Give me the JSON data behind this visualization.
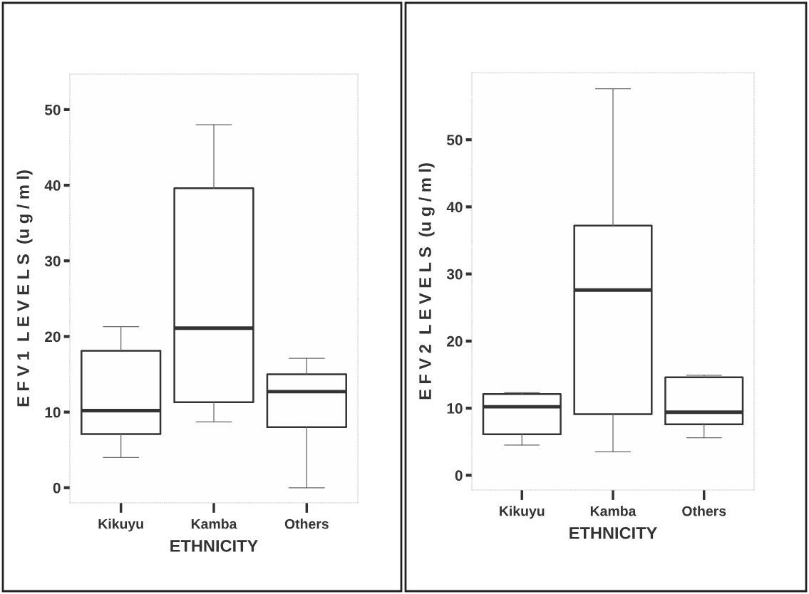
{
  "chart_data": [
    {
      "type": "box",
      "xlabel": "ETHNICITY",
      "ylabel": "E F V 1  L E V E L S  (u g / m l)",
      "categories": [
        "Kikuyu",
        "Kamba",
        "Others"
      ],
      "ylim": [
        -2.0,
        54.7
      ],
      "yticks": [
        0,
        10,
        20,
        30,
        40,
        50
      ],
      "grid": false,
      "boxes": [
        {
          "low": 4.0,
          "q1": 7.1,
          "median": 10.2,
          "q3": 18.1,
          "high": 21.3
        },
        {
          "low": 8.7,
          "q1": 11.3,
          "median": 21.1,
          "q3": 39.6,
          "high": 48.0
        },
        {
          "low": 0.0,
          "q1": 8.0,
          "median": 12.7,
          "q3": 15.0,
          "high": 17.1
        }
      ]
    },
    {
      "type": "box",
      "xlabel": "ETHNICITY",
      "ylabel": "E F V 2  L E V E L S  (u g / m l)",
      "categories": [
        "Kikuyu",
        "Kamba",
        "Others"
      ],
      "ylim": [
        -2.2,
        60.0
      ],
      "yticks": [
        0,
        10,
        20,
        30,
        40,
        50
      ],
      "grid": false,
      "boxes": [
        {
          "low": 4.5,
          "q1": 6.1,
          "median": 10.2,
          "q3": 12.1,
          "high": 12.3
        },
        {
          "low": 3.5,
          "q1": 9.1,
          "median": 27.6,
          "q3": 37.2,
          "high": 57.6
        },
        {
          "low": 5.6,
          "q1": 7.6,
          "median": 9.4,
          "q3": 14.6,
          "high": 14.9
        }
      ]
    }
  ]
}
